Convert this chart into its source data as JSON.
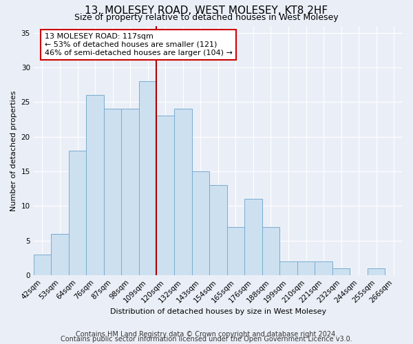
{
  "title": "13, MOLESEY ROAD, WEST MOLESEY, KT8 2HF",
  "subtitle": "Size of property relative to detached houses in West Molesey",
  "xlabel": "Distribution of detached houses by size in West Molesey",
  "ylabel": "Number of detached properties",
  "categories": [
    "42sqm",
    "53sqm",
    "64sqm",
    "76sqm",
    "87sqm",
    "98sqm",
    "109sqm",
    "120sqm",
    "132sqm",
    "143sqm",
    "154sqm",
    "165sqm",
    "176sqm",
    "188sqm",
    "199sqm",
    "210sqm",
    "221sqm",
    "232sqm",
    "244sqm",
    "255sqm",
    "266sqm"
  ],
  "values": [
    3,
    6,
    18,
    26,
    24,
    24,
    28,
    23,
    24,
    15,
    13,
    7,
    11,
    7,
    2,
    2,
    2,
    1,
    0,
    1,
    0
  ],
  "bar_color": "#cce0f0",
  "bar_edge_color": "#7aabcf",
  "vline_color": "#aa0000",
  "annotation_text": "13 MOLESEY ROAD: 117sqm\n← 53% of detached houses are smaller (121)\n46% of semi-detached houses are larger (104) →",
  "annotation_box_color": "#ffffff",
  "annotation_box_edge_color": "#cc0000",
  "ylim": [
    0,
    36
  ],
  "yticks": [
    0,
    5,
    10,
    15,
    20,
    25,
    30,
    35
  ],
  "footer_line1": "Contains HM Land Registry data © Crown copyright and database right 2024.",
  "footer_line2": "Contains public sector information licensed under the Open Government Licence v3.0.",
  "background_color": "#eaeff7",
  "plot_background_color": "#eaeff7",
  "title_fontsize": 11,
  "subtitle_fontsize": 9,
  "axis_label_fontsize": 8,
  "tick_fontsize": 7.5,
  "footer_fontsize": 7,
  "annotation_fontsize": 8
}
